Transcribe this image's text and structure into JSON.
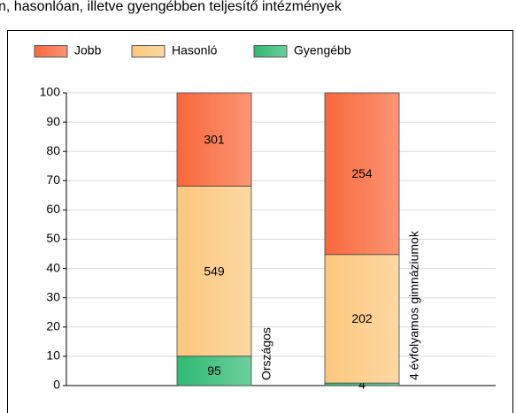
{
  "chart_data": {
    "type": "bar",
    "stack": "percent",
    "title": "n, hasonlóan, illetve gyengébben teljesítő intézmények",
    "categories": [
      "Országos",
      "4 évfolyamos gimnáziumok"
    ],
    "series": [
      {
        "name": "Gyengébb",
        "color": "#2fba72",
        "values": [
          95,
          4
        ]
      },
      {
        "name": "Hasonló",
        "color": "#fcc77c",
        "values": [
          549,
          202
        ]
      },
      {
        "name": "Jobb",
        "color": "#f9683a",
        "values": [
          301,
          254
        ]
      }
    ],
    "ylim": [
      0,
      100
    ],
    "yticks": [
      0,
      10,
      20,
      30,
      40,
      50,
      60,
      70,
      80,
      90,
      100
    ],
    "grid": true
  }
}
